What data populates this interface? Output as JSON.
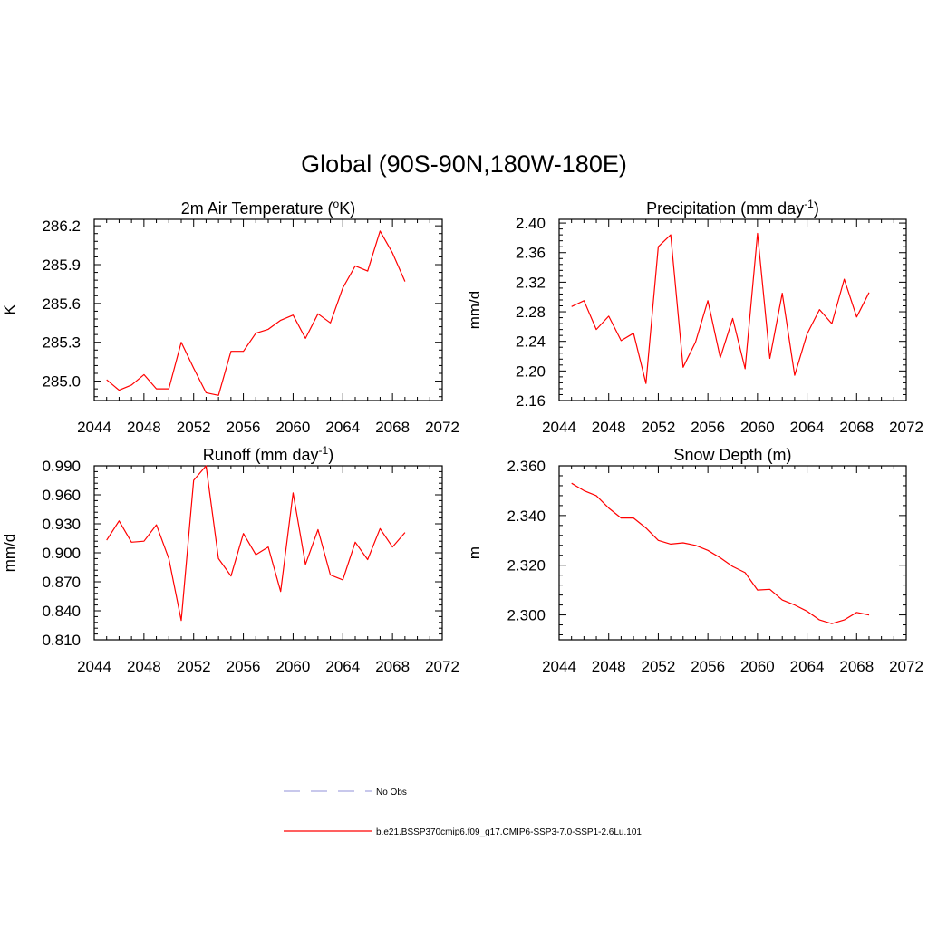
{
  "figure": {
    "title": "Global (90S-90N,180W-180E)"
  },
  "chart_data": [
    {
      "type": "line",
      "title": "2m Air Temperature (oK)",
      "title_parts": [
        "2m Air Temperature (",
        "o",
        "K)"
      ],
      "ylabel": "K",
      "xlim": [
        2044,
        2072
      ],
      "ylim": [
        284.85,
        286.25
      ],
      "x_ticks": [
        2044,
        2048,
        2052,
        2056,
        2060,
        2064,
        2068,
        2072
      ],
      "y_ticks": [
        285.0,
        285.3,
        285.6,
        285.9,
        286.2
      ],
      "y_tick_labels": [
        "285.0",
        "285.3",
        "285.6",
        "285.9",
        "286.2"
      ],
      "series": [
        {
          "color": "#ff0000",
          "x": [
            2045,
            2046,
            2047,
            2048,
            2049,
            2050,
            2051,
            2052,
            2053,
            2054,
            2055,
            2056,
            2057,
            2058,
            2059,
            2060,
            2061,
            2062,
            2063,
            2064,
            2065,
            2066,
            2067,
            2068,
            2069
          ],
          "y": [
            285.01,
            284.93,
            284.97,
            285.05,
            284.94,
            284.94,
            285.3,
            285.1,
            284.91,
            284.89,
            285.23,
            285.23,
            285.37,
            285.4,
            285.47,
            285.51,
            285.33,
            285.52,
            285.45,
            285.72,
            285.89,
            285.85,
            286.16,
            285.99,
            285.77
          ]
        }
      ]
    },
    {
      "type": "line",
      "title": "Precipitation (mm day-1)",
      "title_parts": [
        "Precipitation (mm day",
        "-1",
        ")"
      ],
      "ylabel": "mm/d",
      "xlim": [
        2044,
        2072
      ],
      "ylim": [
        2.16,
        2.405
      ],
      "x_ticks": [
        2044,
        2048,
        2052,
        2056,
        2060,
        2064,
        2068,
        2072
      ],
      "y_ticks": [
        2.16,
        2.2,
        2.24,
        2.28,
        2.32,
        2.36,
        2.4
      ],
      "y_tick_labels": [
        "2.16",
        "2.20",
        "2.24",
        "2.28",
        "2.32",
        "2.36",
        "2.40"
      ],
      "series": [
        {
          "color": "#ff0000",
          "x": [
            2045,
            2046,
            2047,
            2048,
            2049,
            2050,
            2051,
            2052,
            2053,
            2054,
            2055,
            2056,
            2057,
            2058,
            2059,
            2060,
            2061,
            2062,
            2063,
            2064,
            2065,
            2066,
            2067,
            2068,
            2069
          ],
          "y": [
            2.287,
            2.295,
            2.256,
            2.274,
            2.241,
            2.251,
            2.183,
            2.368,
            2.384,
            2.205,
            2.239,
            2.295,
            2.218,
            2.271,
            2.203,
            2.386,
            2.217,
            2.305,
            2.194,
            2.25,
            2.283,
            2.264,
            2.324,
            2.273,
            2.306
          ]
        }
      ]
    },
    {
      "type": "line",
      "title": "Runoff (mm day-1)",
      "title_parts": [
        "Runoff (mm day",
        "-1",
        ")"
      ],
      "ylabel": "mm/d",
      "xlim": [
        2044,
        2072
      ],
      "ylim": [
        0.81,
        0.99
      ],
      "x_ticks": [
        2044,
        2048,
        2052,
        2056,
        2060,
        2064,
        2068,
        2072
      ],
      "y_ticks": [
        0.81,
        0.84,
        0.87,
        0.9,
        0.93,
        0.96,
        0.99
      ],
      "y_tick_labels": [
        "0.810",
        "0.840",
        "0.870",
        "0.900",
        "0.930",
        "0.960",
        "0.990"
      ],
      "series": [
        {
          "color": "#ff0000",
          "x": [
            2045,
            2046,
            2047,
            2048,
            2049,
            2050,
            2051,
            2052,
            2053,
            2054,
            2055,
            2056,
            2057,
            2058,
            2059,
            2060,
            2061,
            2062,
            2063,
            2064,
            2065,
            2066,
            2067,
            2068,
            2069
          ],
          "y": [
            0.913,
            0.933,
            0.911,
            0.912,
            0.929,
            0.894,
            0.83,
            0.975,
            0.99,
            0.894,
            0.876,
            0.92,
            0.898,
            0.906,
            0.86,
            0.962,
            0.888,
            0.924,
            0.877,
            0.872,
            0.911,
            0.893,
            0.925,
            0.906,
            0.921
          ]
        }
      ]
    },
    {
      "type": "line",
      "title": "Snow Depth (m)",
      "title_parts": [
        "Snow Depth (m)",
        "",
        ""
      ],
      "ylabel": "m",
      "xlim": [
        2044,
        2072
      ],
      "ylim": [
        2.29,
        2.36
      ],
      "x_ticks": [
        2044,
        2048,
        2052,
        2056,
        2060,
        2064,
        2068,
        2072
      ],
      "y_ticks": [
        2.3,
        2.32,
        2.34,
        2.36
      ],
      "y_tick_labels": [
        "2.300",
        "2.320",
        "2.340",
        "2.360"
      ],
      "series": [
        {
          "color": "#ff0000",
          "x": [
            2045,
            2046,
            2047,
            2048,
            2049,
            2050,
            2051,
            2052,
            2053,
            2054,
            2055,
            2056,
            2057,
            2058,
            2059,
            2060,
            2061,
            2062,
            2063,
            2064,
            2065,
            2066,
            2067,
            2068,
            2069
          ],
          "y": [
            2.353,
            2.35,
            2.348,
            2.343,
            2.339,
            2.339,
            2.335,
            2.33,
            2.3285,
            2.329,
            2.328,
            2.326,
            2.323,
            2.3195,
            2.317,
            2.31,
            2.3103,
            2.306,
            2.304,
            2.3015,
            2.298,
            2.2965,
            2.298,
            2.301,
            2.3
          ]
        }
      ]
    }
  ],
  "legend": {
    "items": [
      {
        "label": "No Obs",
        "color": "#a7a8e0",
        "dash": "dashed"
      },
      {
        "label": "b.e21.BSSP370cmip6.f09_g17.CMIP6-SSP3-7.0-SSP1-2.6Lu.101",
        "color": "#ff0000",
        "dash": "solid"
      }
    ]
  }
}
